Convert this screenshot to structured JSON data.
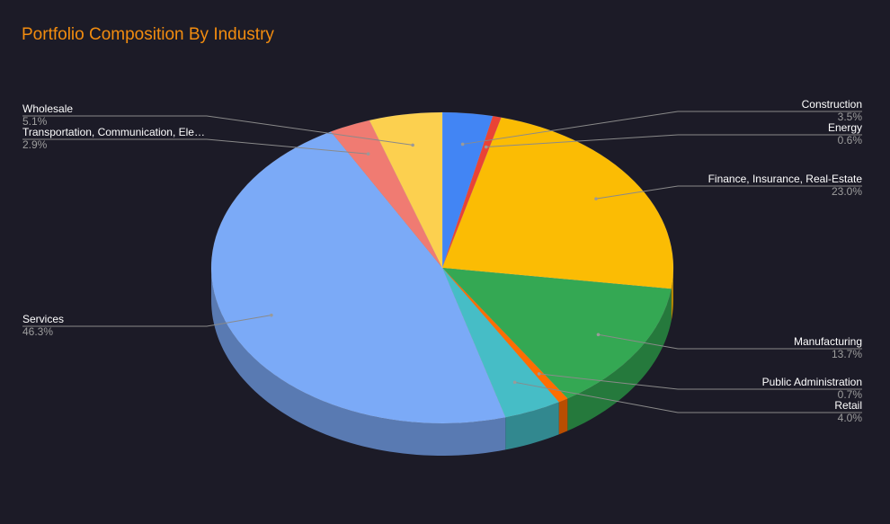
{
  "chart_data": {
    "type": "pie",
    "title": "Portfolio Composition By Industry",
    "colors": {
      "title": "#f28c0f",
      "background": "#1c1b27",
      "leader_line": "#8a8a8a",
      "label_name": "#ffffff",
      "label_pct": "#9e9e9e"
    },
    "slices": [
      {
        "label": "Construction",
        "value": 3.5,
        "pct_label": "3.5%",
        "color": "#4285f4",
        "side": "right"
      },
      {
        "label": "Energy",
        "value": 0.6,
        "pct_label": "0.6%",
        "color": "#ea4335",
        "side": "right"
      },
      {
        "label": "Finance, Insurance, Real-Estate",
        "value": 23.0,
        "pct_label": "23.0%",
        "color": "#fbbc04",
        "side": "right"
      },
      {
        "label": "Manufacturing",
        "value": 13.7,
        "pct_label": "13.7%",
        "color": "#34a853",
        "side": "right"
      },
      {
        "label": "Public Administration",
        "value": 0.7,
        "pct_label": "0.7%",
        "color": "#ff6d01",
        "side": "right"
      },
      {
        "label": "Retail",
        "value": 4.0,
        "pct_label": "4.0%",
        "color": "#46bdc6",
        "side": "right"
      },
      {
        "label": "Services",
        "value": 46.3,
        "pct_label": "46.3%",
        "color": "#7baaf7",
        "side": "left"
      },
      {
        "label": "Transportation, Communication, Ele…",
        "value": 2.9,
        "pct_label": "2.9%",
        "color": "#f07b72",
        "side": "left"
      },
      {
        "label": "Wholesale",
        "value": 5.1,
        "pct_label": "5.1%",
        "color": "#fcd04f",
        "side": "left"
      }
    ]
  }
}
